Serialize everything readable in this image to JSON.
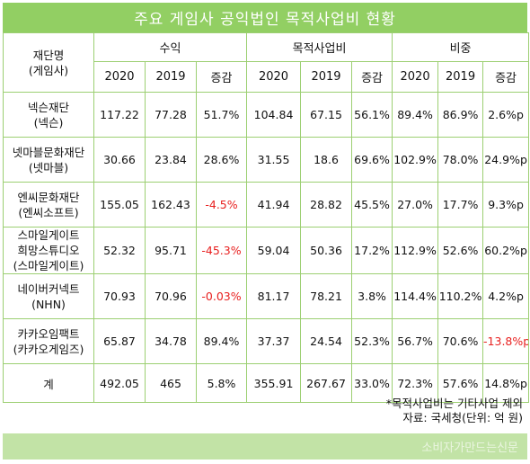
{
  "title": "주요 게임사 공익법인 목적사업비 현황",
  "header": {
    "name_label_1": "재단명",
    "name_label_2": "(게임사)",
    "groups": [
      "수익",
      "목적사업비",
      "비중"
    ],
    "sub": [
      "2020",
      "2019",
      "증감"
    ]
  },
  "rows": [
    {
      "name1": "넥슨재단",
      "name2": "(넥슨)",
      "name3": "",
      "cells": [
        "117.22",
        "77.28",
        "51.7%",
        "104.84",
        "67.15",
        "56.1%",
        "89.4%",
        "86.9%",
        "2.6%p"
      ],
      "neg": []
    },
    {
      "name1": "넷마블문화재단",
      "name2": "(넷마블)",
      "name3": "",
      "cells": [
        "30.66",
        "23.84",
        "28.6%",
        "31.55",
        "18.6",
        "69.6%",
        "102.9%",
        "78.0%",
        "24.9%p"
      ],
      "neg": []
    },
    {
      "name1": "엔씨문화재단",
      "name2": "(엔씨소프트)",
      "name3": "",
      "cells": [
        "155.05",
        "162.43",
        "-4.5%",
        "41.94",
        "28.82",
        "45.5%",
        "27.0%",
        "17.7%",
        "9.3%p"
      ],
      "neg": [
        2
      ]
    },
    {
      "name1": "스마일게이트",
      "name2": "희망스튜디오",
      "name3": "(스마일게이트)",
      "cells": [
        "52.32",
        "95.71",
        "-45.3%",
        "59.04",
        "50.36",
        "17.2%",
        "112.9%",
        "52.6%",
        "60.2%p"
      ],
      "neg": [
        2
      ]
    },
    {
      "name1": "네이버커넥트",
      "name2": "(NHN)",
      "name3": "",
      "cells": [
        "70.93",
        "70.96",
        "-0.03%",
        "81.17",
        "78.21",
        "3.8%",
        "114.4%",
        "110.2%",
        "4.2%p"
      ],
      "neg": [
        2
      ]
    },
    {
      "name1": "카카오임팩트",
      "name2": "(카카오게임즈)",
      "name3": "",
      "cells": [
        "65.87",
        "34.78",
        "89.4%",
        "37.37",
        "24.54",
        "52.3%",
        "56.7%",
        "70.6%",
        "-13.8%p"
      ],
      "neg": [
        8
      ]
    }
  ],
  "total": {
    "name": "계",
    "cells": [
      "492.05",
      "465",
      "5.8%",
      "355.91",
      "267.67",
      "33.0%",
      "72.3%",
      "57.6%",
      "14.8%p"
    ]
  },
  "notes": {
    "line1": "*목적사업비는 기타사업 제외",
    "line2": "자료: 국세청(단위: 억 원)"
  },
  "footer": "소비자가만드는신문",
  "colors": {
    "accent": "#92cf63",
    "border": "#9ccf72",
    "negative": "#e8201f",
    "footer_bg": "#c2e3a6"
  }
}
